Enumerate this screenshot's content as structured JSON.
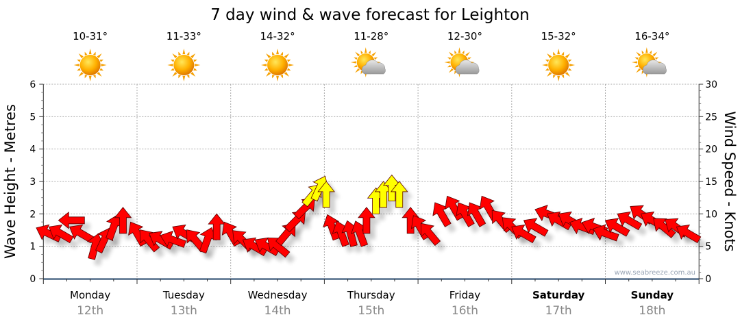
{
  "chart_data": {
    "type": "scatter",
    "title": "7 day wind & wave forecast for Leighton",
    "ylabel": "Wave Height - Metres",
    "y2label": "Wind Speed - Knots",
    "ylim": [
      0,
      6
    ],
    "y2lim": [
      0,
      30
    ],
    "yticks": [
      "0",
      "1",
      "2",
      "3",
      "4",
      "5",
      "6"
    ],
    "y2ticks": [
      "0",
      "5",
      "10",
      "15",
      "20",
      "25",
      "30"
    ],
    "grid": true,
    "watermark": "www.seabreeze.com.au",
    "colors": {
      "normal": "#ff0000",
      "strong": "#ffff00",
      "strong_threshold_knots": 12
    },
    "days": [
      {
        "name": "Monday",
        "date": "12th",
        "temp": "10-31°",
        "icon": "sunny",
        "bold": false
      },
      {
        "name": "Tuesday",
        "date": "13th",
        "temp": "11-33°",
        "icon": "sunny",
        "bold": false
      },
      {
        "name": "Wednesday",
        "date": "14th",
        "temp": "14-32°",
        "icon": "sunny",
        "bold": false
      },
      {
        "name": "Thursday",
        "date": "15th",
        "temp": "11-28°",
        "icon": "partly-cloudy",
        "bold": false
      },
      {
        "name": "Friday",
        "date": "16th",
        "temp": "12-30°",
        "icon": "partly-cloudy",
        "bold": false
      },
      {
        "name": "Saturday",
        "date": "17th",
        "temp": "15-32°",
        "icon": "sunny",
        "bold": true
      },
      {
        "name": "Sunday",
        "date": "18th",
        "temp": "16-34°",
        "icon": "partly-cloudy",
        "bold": true
      }
    ],
    "wind_series_note": "each point: [day_fraction_from_start, speed_knots, arrow_direction_deg_clockwise_from_up]",
    "wind": [
      [
        0.05,
        7,
        295
      ],
      [
        0.18,
        7,
        300
      ],
      [
        0.3,
        9,
        270
      ],
      [
        0.4,
        7,
        300
      ],
      [
        0.55,
        5,
        15
      ],
      [
        0.65,
        6,
        25
      ],
      [
        0.75,
        8,
        20
      ],
      [
        0.85,
        9,
        0
      ],
      [
        1.0,
        7,
        330
      ],
      [
        1.12,
        6,
        320
      ],
      [
        1.25,
        6,
        300
      ],
      [
        1.38,
        6,
        290
      ],
      [
        1.5,
        7,
        300
      ],
      [
        1.62,
        6,
        320
      ],
      [
        1.75,
        6,
        20
      ],
      [
        1.85,
        8,
        0
      ],
      [
        2.0,
        7,
        330
      ],
      [
        2.12,
        6,
        315
      ],
      [
        2.25,
        5,
        300
      ],
      [
        2.38,
        5,
        300
      ],
      [
        2.5,
        5,
        310
      ],
      [
        2.6,
        7,
        40
      ],
      [
        2.7,
        9,
        45
      ],
      [
        2.8,
        11,
        45
      ],
      [
        2.88,
        13,
        40
      ],
      [
        2.95,
        14,
        25
      ],
      [
        3.02,
        13,
        0
      ],
      [
        3.08,
        8,
        340
      ],
      [
        3.18,
        7,
        340
      ],
      [
        3.28,
        7,
        345
      ],
      [
        3.38,
        7,
        340
      ],
      [
        3.45,
        9,
        0
      ],
      [
        3.55,
        12,
        0
      ],
      [
        3.63,
        13,
        0
      ],
      [
        3.72,
        14,
        0
      ],
      [
        3.8,
        13,
        0
      ],
      [
        3.92,
        9,
        0
      ],
      [
        4.02,
        8,
        330
      ],
      [
        4.12,
        7,
        320
      ],
      [
        4.25,
        10,
        330
      ],
      [
        4.38,
        11,
        330
      ],
      [
        4.5,
        10,
        330
      ],
      [
        4.62,
        10,
        330
      ],
      [
        4.75,
        11,
        330
      ],
      [
        4.88,
        9,
        320
      ],
      [
        5.0,
        8,
        315
      ],
      [
        5.12,
        7,
        300
      ],
      [
        5.25,
        8,
        300
      ],
      [
        5.38,
        10,
        290
      ],
      [
        5.5,
        9,
        300
      ],
      [
        5.62,
        9,
        300
      ],
      [
        5.75,
        8,
        290
      ],
      [
        5.88,
        8,
        290
      ],
      [
        6.0,
        7,
        290
      ],
      [
        6.12,
        8,
        300
      ],
      [
        6.25,
        9,
        300
      ],
      [
        6.38,
        10,
        305
      ],
      [
        6.5,
        9,
        300
      ],
      [
        6.62,
        8,
        310
      ],
      [
        6.75,
        8,
        305
      ],
      [
        6.88,
        7,
        300
      ]
    ]
  }
}
